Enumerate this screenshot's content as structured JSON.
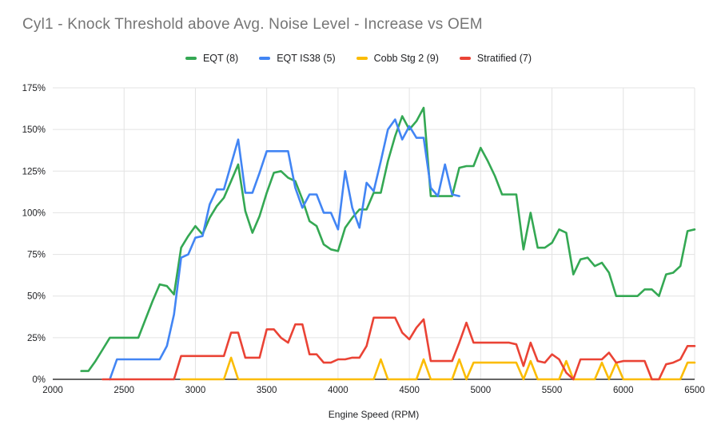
{
  "title": "Cyl1 - Knock Threshold above Avg. Noise Level - Increase vs OEM",
  "x_axis_title": "Engine Speed (RPM)",
  "colors": {
    "title_text": "#757575",
    "legend_text": "#202124",
    "gridline": "#e3e3e3",
    "axis_line": "#333333",
    "green": "#34a853",
    "blue": "#4285f4",
    "yellow": "#fbbc04",
    "red": "#ea4335"
  },
  "chart_data": {
    "type": "line",
    "title": "Cyl1 - Knock Threshold above Avg. Noise Level - Increase vs OEM",
    "xlabel": "Engine Speed (RPM)",
    "ylabel": "",
    "xlim": [
      2000,
      6500
    ],
    "ylim": [
      0,
      175
    ],
    "x_ticks": [
      2000,
      2500,
      3000,
      3500,
      4000,
      4500,
      5000,
      5500,
      6000,
      6500
    ],
    "y_ticks": [
      0,
      25,
      50,
      75,
      100,
      125,
      150,
      175
    ],
    "y_tick_suffix": "%",
    "grid": true,
    "legend_position": "top-center",
    "series": [
      {
        "name": "EQT (8)",
        "color": "#34a853",
        "points": [
          [
            2200,
            5
          ],
          [
            2250,
            5
          ],
          [
            2300,
            11
          ],
          [
            2350,
            18
          ],
          [
            2400,
            25
          ],
          [
            2450,
            25
          ],
          [
            2500,
            25
          ],
          [
            2550,
            25
          ],
          [
            2600,
            25
          ],
          [
            2650,
            36
          ],
          [
            2700,
            47
          ],
          [
            2750,
            57
          ],
          [
            2800,
            56
          ],
          [
            2850,
            51
          ],
          [
            2900,
            79
          ],
          [
            2950,
            86
          ],
          [
            3000,
            92
          ],
          [
            3050,
            87
          ],
          [
            3100,
            97
          ],
          [
            3150,
            104
          ],
          [
            3200,
            109
          ],
          [
            3250,
            119
          ],
          [
            3300,
            129
          ],
          [
            3350,
            101
          ],
          [
            3400,
            88
          ],
          [
            3450,
            98
          ],
          [
            3500,
            112
          ],
          [
            3550,
            124
          ],
          [
            3600,
            125
          ],
          [
            3650,
            121
          ],
          [
            3700,
            119
          ],
          [
            3750,
            108
          ],
          [
            3800,
            95
          ],
          [
            3850,
            92
          ],
          [
            3900,
            81
          ],
          [
            3950,
            78
          ],
          [
            4000,
            77
          ],
          [
            4050,
            91
          ],
          [
            4100,
            97
          ],
          [
            4150,
            102
          ],
          [
            4200,
            102
          ],
          [
            4250,
            112
          ],
          [
            4300,
            112
          ],
          [
            4350,
            131
          ],
          [
            4400,
            146
          ],
          [
            4450,
            158
          ],
          [
            4500,
            150
          ],
          [
            4550,
            155
          ],
          [
            4600,
            163
          ],
          [
            4650,
            110
          ],
          [
            4700,
            110
          ],
          [
            4750,
            110
          ],
          [
            4800,
            110
          ],
          [
            4850,
            127
          ],
          [
            4900,
            128
          ],
          [
            4950,
            128
          ],
          [
            5000,
            139
          ],
          [
            5050,
            131
          ],
          [
            5100,
            122
          ],
          [
            5150,
            111
          ],
          [
            5200,
            111
          ],
          [
            5250,
            111
          ],
          [
            5300,
            78
          ],
          [
            5350,
            100
          ],
          [
            5400,
            79
          ],
          [
            5450,
            79
          ],
          [
            5500,
            82
          ],
          [
            5550,
            90
          ],
          [
            5600,
            88
          ],
          [
            5650,
            63
          ],
          [
            5700,
            72
          ],
          [
            5750,
            73
          ],
          [
            5800,
            68
          ],
          [
            5850,
            70
          ],
          [
            5900,
            64
          ],
          [
            5950,
            50
          ],
          [
            6000,
            50
          ],
          [
            6050,
            50
          ],
          [
            6100,
            50
          ],
          [
            6150,
            54
          ],
          [
            6200,
            54
          ],
          [
            6250,
            50
          ],
          [
            6300,
            63
          ],
          [
            6350,
            64
          ],
          [
            6400,
            68
          ],
          [
            6450,
            89
          ],
          [
            6500,
            90
          ]
        ]
      },
      {
        "name": "EQT IS38 (5)",
        "color": "#4285f4",
        "points": [
          [
            2400,
            0
          ],
          [
            2450,
            12
          ],
          [
            2500,
            12
          ],
          [
            2550,
            12
          ],
          [
            2600,
            12
          ],
          [
            2650,
            12
          ],
          [
            2700,
            12
          ],
          [
            2750,
            12
          ],
          [
            2800,
            20
          ],
          [
            2850,
            39
          ],
          [
            2900,
            73
          ],
          [
            2950,
            75
          ],
          [
            3000,
            85
          ],
          [
            3050,
            86
          ],
          [
            3100,
            105
          ],
          [
            3150,
            114
          ],
          [
            3200,
            114
          ],
          [
            3250,
            129
          ],
          [
            3300,
            144
          ],
          [
            3350,
            112
          ],
          [
            3400,
            112
          ],
          [
            3450,
            124
          ],
          [
            3500,
            137
          ],
          [
            3550,
            137
          ],
          [
            3600,
            137
          ],
          [
            3650,
            137
          ],
          [
            3700,
            115
          ],
          [
            3750,
            103
          ],
          [
            3800,
            111
          ],
          [
            3850,
            111
          ],
          [
            3900,
            100
          ],
          [
            3950,
            100
          ],
          [
            4000,
            90
          ],
          [
            4050,
            125
          ],
          [
            4100,
            103
          ],
          [
            4150,
            91
          ],
          [
            4200,
            118
          ],
          [
            4250,
            113
          ],
          [
            4300,
            131
          ],
          [
            4350,
            150
          ],
          [
            4400,
            156
          ],
          [
            4450,
            144
          ],
          [
            4500,
            152
          ],
          [
            4550,
            145
          ],
          [
            4600,
            145
          ],
          [
            4650,
            115
          ],
          [
            4700,
            110
          ],
          [
            4750,
            129
          ],
          [
            4800,
            111
          ],
          [
            4850,
            110
          ]
        ]
      },
      {
        "name": "Cobb Stg 2 (9)",
        "color": "#fbbc04",
        "points": [
          [
            2900,
            0
          ],
          [
            2950,
            0
          ],
          [
            3000,
            0
          ],
          [
            3050,
            0
          ],
          [
            3100,
            0
          ],
          [
            3150,
            0
          ],
          [
            3200,
            0
          ],
          [
            3250,
            13
          ],
          [
            3300,
            0
          ],
          [
            3350,
            0
          ],
          [
            3400,
            0
          ],
          [
            3450,
            0
          ],
          [
            3500,
            0
          ],
          [
            3550,
            0
          ],
          [
            3600,
            0
          ],
          [
            3650,
            0
          ],
          [
            3700,
            0
          ],
          [
            3750,
            0
          ],
          [
            3800,
            0
          ],
          [
            3850,
            0
          ],
          [
            3900,
            0
          ],
          [
            3950,
            0
          ],
          [
            4000,
            0
          ],
          [
            4050,
            0
          ],
          [
            4100,
            0
          ],
          [
            4150,
            0
          ],
          [
            4200,
            0
          ],
          [
            4250,
            0
          ],
          [
            4300,
            12
          ],
          [
            4350,
            0
          ],
          [
            4400,
            0
          ],
          [
            4450,
            0
          ],
          [
            4500,
            0
          ],
          [
            4550,
            0
          ],
          [
            4600,
            12
          ],
          [
            4650,
            0
          ],
          [
            4700,
            0
          ],
          [
            4750,
            0
          ],
          [
            4800,
            0
          ],
          [
            4850,
            12
          ],
          [
            4900,
            0
          ],
          [
            4950,
            10
          ],
          [
            5000,
            10
          ],
          [
            5050,
            10
          ],
          [
            5100,
            10
          ],
          [
            5150,
            10
          ],
          [
            5200,
            10
          ],
          [
            5250,
            10
          ],
          [
            5300,
            0
          ],
          [
            5350,
            11
          ],
          [
            5400,
            0
          ],
          [
            5450,
            0
          ],
          [
            5500,
            0
          ],
          [
            5550,
            0
          ],
          [
            5600,
            11
          ],
          [
            5650,
            0
          ],
          [
            5700,
            0
          ],
          [
            5750,
            0
          ],
          [
            5800,
            0
          ],
          [
            5850,
            10
          ],
          [
            5900,
            0
          ],
          [
            5950,
            10
          ],
          [
            6000,
            0
          ],
          [
            6050,
            0
          ],
          [
            6100,
            0
          ],
          [
            6150,
            0
          ],
          [
            6200,
            0
          ],
          [
            6250,
            0
          ],
          [
            6300,
            0
          ],
          [
            6350,
            0
          ],
          [
            6400,
            0
          ],
          [
            6450,
            10
          ],
          [
            6500,
            10
          ]
        ]
      },
      {
        "name": "Stratified (7)",
        "color": "#ea4335",
        "points": [
          [
            2350,
            0
          ],
          [
            2400,
            0
          ],
          [
            2450,
            0
          ],
          [
            2500,
            0
          ],
          [
            2550,
            0
          ],
          [
            2600,
            0
          ],
          [
            2650,
            0
          ],
          [
            2700,
            0
          ],
          [
            2750,
            0
          ],
          [
            2800,
            0
          ],
          [
            2850,
            0
          ],
          [
            2900,
            14
          ],
          [
            2950,
            14
          ],
          [
            3000,
            14
          ],
          [
            3050,
            14
          ],
          [
            3100,
            14
          ],
          [
            3150,
            14
          ],
          [
            3200,
            14
          ],
          [
            3250,
            28
          ],
          [
            3300,
            28
          ],
          [
            3350,
            13
          ],
          [
            3400,
            13
          ],
          [
            3450,
            13
          ],
          [
            3500,
            30
          ],
          [
            3550,
            30
          ],
          [
            3600,
            25
          ],
          [
            3650,
            22
          ],
          [
            3700,
            33
          ],
          [
            3750,
            33
          ],
          [
            3800,
            15
          ],
          [
            3850,
            15
          ],
          [
            3900,
            10
          ],
          [
            3950,
            10
          ],
          [
            4000,
            12
          ],
          [
            4050,
            12
          ],
          [
            4100,
            13
          ],
          [
            4150,
            13
          ],
          [
            4200,
            20
          ],
          [
            4250,
            37
          ],
          [
            4300,
            37
          ],
          [
            4350,
            37
          ],
          [
            4400,
            37
          ],
          [
            4450,
            28
          ],
          [
            4500,
            24
          ],
          [
            4550,
            31
          ],
          [
            4600,
            36
          ],
          [
            4650,
            11
          ],
          [
            4700,
            11
          ],
          [
            4750,
            11
          ],
          [
            4800,
            11
          ],
          [
            4850,
            22
          ],
          [
            4900,
            34
          ],
          [
            4950,
            22
          ],
          [
            5000,
            22
          ],
          [
            5050,
            22
          ],
          [
            5100,
            22
          ],
          [
            5150,
            22
          ],
          [
            5200,
            22
          ],
          [
            5250,
            21
          ],
          [
            5300,
            8
          ],
          [
            5350,
            22
          ],
          [
            5400,
            11
          ],
          [
            5450,
            10
          ],
          [
            5500,
            15
          ],
          [
            5550,
            12
          ],
          [
            5600,
            4
          ],
          [
            5650,
            0
          ],
          [
            5700,
            12
          ],
          [
            5750,
            12
          ],
          [
            5800,
            12
          ],
          [
            5850,
            12
          ],
          [
            5900,
            16
          ],
          [
            5950,
            10
          ],
          [
            6000,
            11
          ],
          [
            6050,
            11
          ],
          [
            6100,
            11
          ],
          [
            6150,
            11
          ],
          [
            6200,
            0
          ],
          [
            6250,
            0
          ],
          [
            6300,
            9
          ],
          [
            6350,
            10
          ],
          [
            6400,
            12
          ],
          [
            6450,
            20
          ],
          [
            6500,
            20
          ]
        ]
      }
    ]
  }
}
